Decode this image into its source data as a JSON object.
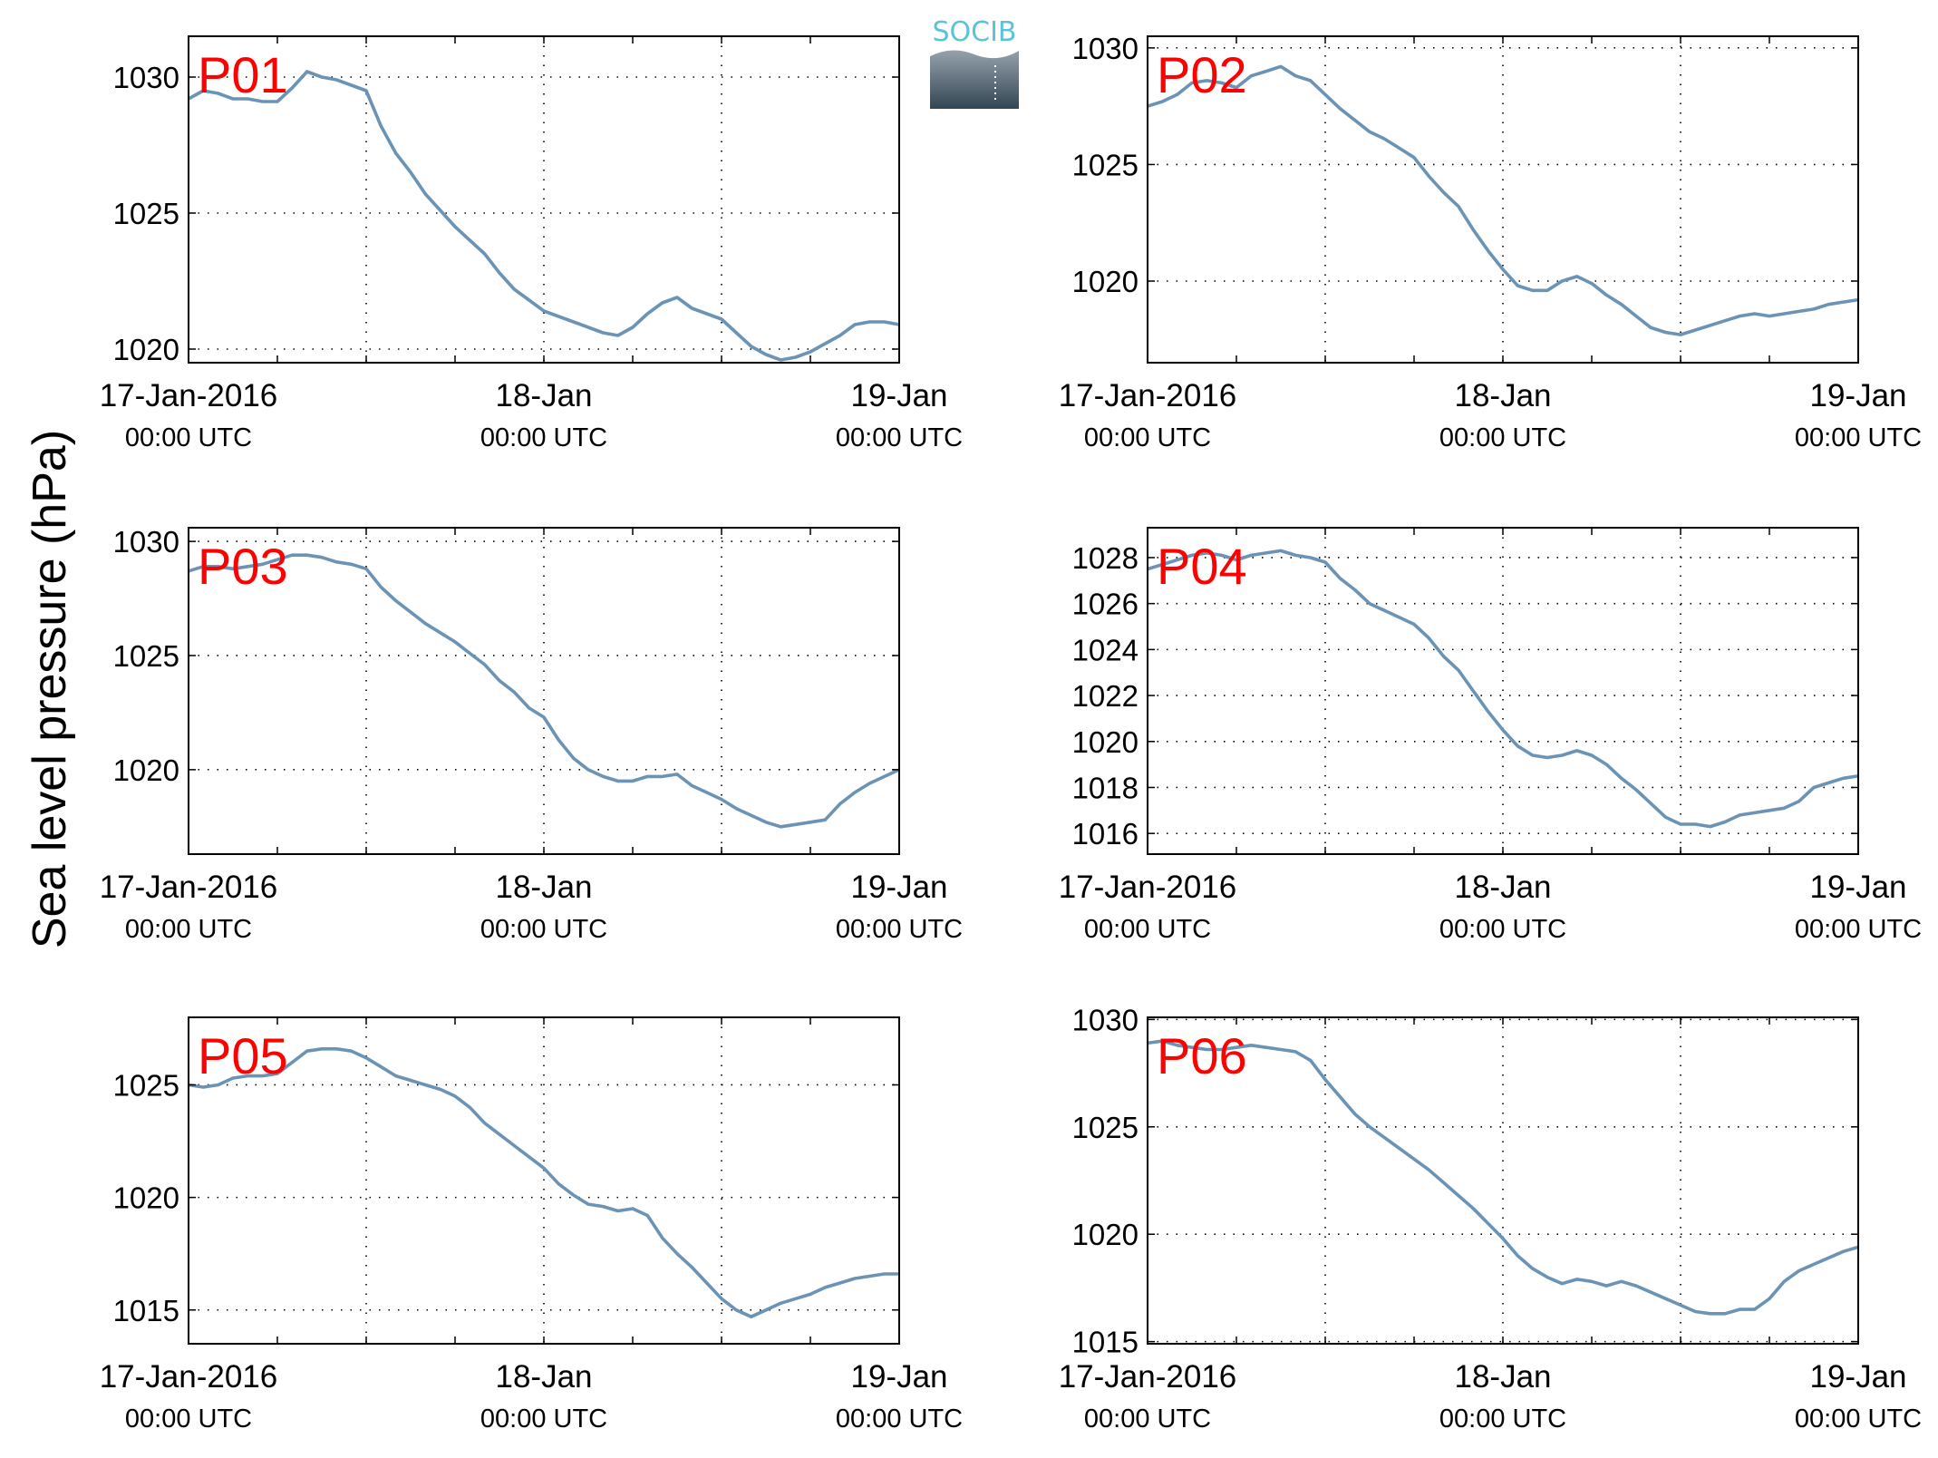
{
  "logo": {
    "text": "SOCIB",
    "text_color": "#5bc3d8",
    "gradient_top": "#a7b3bc",
    "gradient_bottom": "#334553"
  },
  "figure": {
    "ylabel": "Sea level pressure (hPa)",
    "line_color": "#6a93b5",
    "label_color": "#ff0000",
    "x_tick_labels": [
      {
        "main": "17-Jan-2016",
        "sub": "00:00 UTC",
        "hours": 0
      },
      {
        "main": "18-Jan",
        "sub": "00:00 UTC",
        "hours": 24
      },
      {
        "main": "19-Jan",
        "sub": "00:00 UTC",
        "hours": 48
      }
    ]
  },
  "chart_data": [
    {
      "type": "line",
      "label": "P01",
      "x_unit": "hours since 17-Jan-2016 00:00 UTC",
      "xlim": [
        0,
        48
      ],
      "ylim": [
        1019.5,
        1031.5
      ],
      "yticks": [
        1020,
        1025,
        1030
      ],
      "grid": true,
      "x": [
        0,
        1,
        2,
        3,
        4,
        5,
        6,
        7,
        8,
        9,
        10,
        11,
        12,
        13,
        14,
        15,
        16,
        17,
        18,
        19,
        20,
        21,
        22,
        23,
        24,
        25,
        26,
        27,
        28,
        29,
        30,
        31,
        32,
        33,
        34,
        35,
        36,
        37,
        38,
        39,
        40,
        41,
        42,
        43,
        44,
        45,
        46,
        47,
        48
      ],
      "y": [
        1029.2,
        1029.5,
        1029.4,
        1029.2,
        1029.2,
        1029.1,
        1029.1,
        1029.6,
        1030.2,
        1030.0,
        1029.9,
        1029.7,
        1029.5,
        1028.2,
        1027.2,
        1026.5,
        1025.7,
        1025.1,
        1024.5,
        1024.0,
        1023.5,
        1022.8,
        1022.2,
        1021.8,
        1021.4,
        1021.2,
        1021.0,
        1020.8,
        1020.6,
        1020.5,
        1020.8,
        1021.3,
        1021.7,
        1021.9,
        1021.5,
        1021.3,
        1021.1,
        1020.6,
        1020.1,
        1019.8,
        1019.6,
        1019.7,
        1019.9,
        1020.2,
        1020.5,
        1020.9,
        1021.0,
        1021.0,
        1020.9
      ]
    },
    {
      "type": "line",
      "label": "P02",
      "x_unit": "hours since 17-Jan-2016 00:00 UTC",
      "xlim": [
        0,
        48
      ],
      "ylim": [
        1016.5,
        1030.5
      ],
      "yticks": [
        1020,
        1025,
        1030
      ],
      "grid": true,
      "x": [
        0,
        1,
        2,
        3,
        4,
        5,
        6,
        7,
        8,
        9,
        10,
        11,
        12,
        13,
        14,
        15,
        16,
        17,
        18,
        19,
        20,
        21,
        22,
        23,
        24,
        25,
        26,
        27,
        28,
        29,
        30,
        31,
        32,
        33,
        34,
        35,
        36,
        37,
        38,
        39,
        40,
        41,
        42,
        43,
        44,
        45,
        46,
        47,
        48
      ],
      "y": [
        1027.5,
        1027.7,
        1028.0,
        1028.5,
        1028.6,
        1028.5,
        1028.3,
        1028.8,
        1029.0,
        1029.2,
        1028.8,
        1028.6,
        1028.0,
        1027.4,
        1026.9,
        1026.4,
        1026.1,
        1025.7,
        1025.3,
        1024.5,
        1023.8,
        1023.2,
        1022.2,
        1021.3,
        1020.5,
        1019.8,
        1019.6,
        1019.6,
        1020.0,
        1020.2,
        1019.9,
        1019.4,
        1019.0,
        1018.5,
        1018.0,
        1017.8,
        1017.7,
        1017.9,
        1018.1,
        1018.3,
        1018.5,
        1018.6,
        1018.5,
        1018.6,
        1018.7,
        1018.8,
        1019.0,
        1019.1,
        1019.2
      ]
    },
    {
      "type": "line",
      "label": "P03",
      "x_unit": "hours since 17-Jan-2016 00:00 UTC",
      "xlim": [
        0,
        48
      ],
      "ylim": [
        1016.3,
        1030.6
      ],
      "yticks": [
        1020,
        1025,
        1030
      ],
      "grid": true,
      "x": [
        0,
        1,
        2,
        3,
        4,
        5,
        6,
        7,
        8,
        9,
        10,
        11,
        12,
        13,
        14,
        15,
        16,
        17,
        18,
        19,
        20,
        21,
        22,
        23,
        24,
        25,
        26,
        27,
        28,
        29,
        30,
        31,
        32,
        33,
        34,
        35,
        36,
        37,
        38,
        39,
        40,
        41,
        42,
        43,
        44,
        45,
        46,
        47,
        48
      ],
      "y": [
        1028.7,
        1028.9,
        1028.9,
        1028.8,
        1028.9,
        1029.0,
        1029.2,
        1029.4,
        1029.4,
        1029.3,
        1029.1,
        1029.0,
        1028.8,
        1028.0,
        1027.4,
        1026.9,
        1026.4,
        1026.0,
        1025.6,
        1025.1,
        1024.6,
        1023.9,
        1023.4,
        1022.7,
        1022.3,
        1021.3,
        1020.5,
        1020.0,
        1019.7,
        1019.5,
        1019.5,
        1019.7,
        1019.7,
        1019.8,
        1019.3,
        1019.0,
        1018.7,
        1018.3,
        1018.0,
        1017.7,
        1017.5,
        1017.6,
        1017.7,
        1017.8,
        1018.5,
        1019.0,
        1019.4,
        1019.7,
        1020.0
      ]
    },
    {
      "type": "line",
      "label": "P04",
      "x_unit": "hours since 17-Jan-2016 00:00 UTC",
      "xlim": [
        0,
        48
      ],
      "ylim": [
        1015.1,
        1029.3
      ],
      "yticks": [
        1016,
        1018,
        1020,
        1022,
        1024,
        1026,
        1028
      ],
      "grid": true,
      "x": [
        0,
        1,
        2,
        3,
        4,
        5,
        6,
        7,
        8,
        9,
        10,
        11,
        12,
        13,
        14,
        15,
        16,
        17,
        18,
        19,
        20,
        21,
        22,
        23,
        24,
        25,
        26,
        27,
        28,
        29,
        30,
        31,
        32,
        33,
        34,
        35,
        36,
        37,
        38,
        39,
        40,
        41,
        42,
        43,
        44,
        45,
        46,
        47,
        48
      ],
      "y": [
        1027.5,
        1027.7,
        1027.9,
        1028.1,
        1028.2,
        1028.1,
        1027.9,
        1028.1,
        1028.2,
        1028.3,
        1028.1,
        1028.0,
        1027.8,
        1027.1,
        1026.6,
        1026.0,
        1025.7,
        1025.4,
        1025.1,
        1024.5,
        1023.7,
        1023.1,
        1022.2,
        1021.3,
        1020.5,
        1019.8,
        1019.4,
        1019.3,
        1019.4,
        1019.6,
        1019.4,
        1019.0,
        1018.4,
        1017.9,
        1017.3,
        1016.7,
        1016.4,
        1016.4,
        1016.3,
        1016.5,
        1016.8,
        1016.9,
        1017.0,
        1017.1,
        1017.4,
        1018.0,
        1018.2,
        1018.4,
        1018.5
      ]
    },
    {
      "type": "line",
      "label": "P05",
      "x_unit": "hours since 17-Jan-2016 00:00 UTC",
      "xlim": [
        0,
        48
      ],
      "ylim": [
        1013.5,
        1028.0
      ],
      "yticks": [
        1015,
        1020,
        1025
      ],
      "grid": true,
      "x": [
        0,
        1,
        2,
        3,
        4,
        5,
        6,
        7,
        8,
        9,
        10,
        11,
        12,
        13,
        14,
        15,
        16,
        17,
        18,
        19,
        20,
        21,
        22,
        23,
        24,
        25,
        26,
        27,
        28,
        29,
        30,
        31,
        32,
        33,
        34,
        35,
        36,
        37,
        38,
        39,
        40,
        41,
        42,
        43,
        44,
        45,
        46,
        47,
        48
      ],
      "y": [
        1025.0,
        1024.9,
        1025.0,
        1025.3,
        1025.4,
        1025.4,
        1025.5,
        1026.0,
        1026.5,
        1026.6,
        1026.6,
        1026.5,
        1026.2,
        1025.8,
        1025.4,
        1025.2,
        1025.0,
        1024.8,
        1024.5,
        1024.0,
        1023.3,
        1022.8,
        1022.3,
        1021.8,
        1021.3,
        1020.6,
        1020.1,
        1019.7,
        1019.6,
        1019.4,
        1019.5,
        1019.2,
        1018.2,
        1017.5,
        1016.9,
        1016.2,
        1015.5,
        1015.0,
        1014.7,
        1015.0,
        1015.3,
        1015.5,
        1015.7,
        1016.0,
        1016.2,
        1016.4,
        1016.5,
        1016.6,
        1016.6
      ]
    },
    {
      "type": "line",
      "label": "P06",
      "x_unit": "hours since 17-Jan-2016 00:00 UTC",
      "xlim": [
        0,
        48
      ],
      "ylim": [
        1014.9,
        1030.1
      ],
      "yticks": [
        1015,
        1020,
        1025,
        1030
      ],
      "grid": true,
      "x": [
        0,
        1,
        2,
        3,
        4,
        5,
        6,
        7,
        8,
        9,
        10,
        11,
        12,
        13,
        14,
        15,
        16,
        17,
        18,
        19,
        20,
        21,
        22,
        23,
        24,
        25,
        26,
        27,
        28,
        29,
        30,
        31,
        32,
        33,
        34,
        35,
        36,
        37,
        38,
        39,
        40,
        41,
        42,
        43,
        44,
        45,
        46,
        47,
        48
      ],
      "y": [
        1028.9,
        1029.0,
        1028.8,
        1028.7,
        1028.6,
        1028.6,
        1028.7,
        1028.8,
        1028.7,
        1028.6,
        1028.5,
        1028.1,
        1027.2,
        1026.4,
        1025.6,
        1025.0,
        1024.5,
        1024.0,
        1023.5,
        1023.0,
        1022.4,
        1021.8,
        1021.2,
        1020.5,
        1019.8,
        1019.0,
        1018.4,
        1018.0,
        1017.7,
        1017.9,
        1017.8,
        1017.6,
        1017.8,
        1017.6,
        1017.3,
        1017.0,
        1016.7,
        1016.4,
        1016.3,
        1016.3,
        1016.5,
        1016.5,
        1017.0,
        1017.8,
        1018.3,
        1018.6,
        1018.9,
        1019.2,
        1019.4
      ]
    }
  ]
}
